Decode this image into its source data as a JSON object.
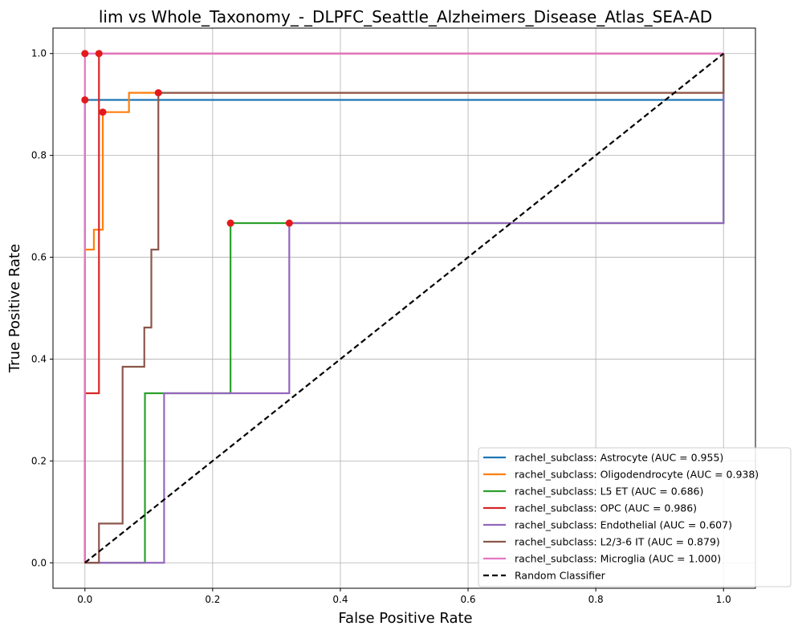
{
  "chart_data": {
    "type": "line",
    "title": "lim vs Whole_Taxonomy_-_DLPFC_Seattle_Alzheimers_Disease_Atlas_SEA-AD",
    "xlabel": "False Positive Rate",
    "ylabel": "True Positive Rate",
    "xlim": [
      -0.05,
      1.05
    ],
    "ylim": [
      -0.05,
      1.05
    ],
    "xticks": [
      "0.0",
      "0.2",
      "0.4",
      "0.6",
      "0.8",
      "1.0"
    ],
    "yticks": [
      "0.0",
      "0.2",
      "0.4",
      "0.6",
      "0.8",
      "1.0"
    ],
    "grid": true,
    "legend_position": "lower-right",
    "series": [
      {
        "name": "rachel_subclass: Astrocyte (AUC = 0.955)",
        "color": "#1f77b4",
        "x": [
          0,
          0,
          0,
          1,
          1
        ],
        "y": [
          0,
          0.909,
          0.909,
          0.909,
          1.0
        ],
        "marker": [
          0,
          0.909
        ]
      },
      {
        "name": "rachel_subclass: Oligodendrocyte (AUC = 0.938)",
        "color": "#ff7f0e",
        "x": [
          0,
          0,
          0,
          0.014,
          0.014,
          0.028,
          0.028,
          0.069,
          0.069,
          0.115,
          0.115,
          1,
          1
        ],
        "y": [
          0,
          0.615,
          0.615,
          0.615,
          0.654,
          0.654,
          0.885,
          0.885,
          0.923,
          0.923,
          0.923,
          0.923,
          1.0
        ],
        "marker": [
          0.028,
          0.885
        ]
      },
      {
        "name": "rachel_subclass: L5 ET (AUC = 0.686)",
        "color": "#2ca02c",
        "x": [
          0,
          0.094,
          0.094,
          0.228,
          0.228,
          0.32,
          1,
          1
        ],
        "y": [
          0,
          0,
          0.333,
          0.333,
          0.667,
          0.667,
          0.667,
          1.0
        ],
        "marker": [
          0.228,
          0.667
        ]
      },
      {
        "name": "rachel_subclass: OPC (AUC = 0.986)",
        "color": "#d62728",
        "x": [
          0,
          0,
          0.022,
          0.022,
          1
        ],
        "y": [
          0,
          0.333,
          0.333,
          1.0,
          1.0
        ],
        "marker": [
          0.022,
          1.0
        ]
      },
      {
        "name": "rachel_subclass: Endothelial (AUC = 0.607)",
        "color": "#9467bd",
        "x": [
          0,
          0.124,
          0.124,
          0.32,
          0.32,
          1,
          1
        ],
        "y": [
          0,
          0,
          0.333,
          0.333,
          0.667,
          0.667,
          1.0
        ],
        "marker": [
          0.32,
          0.667
        ]
      },
      {
        "name": "rachel_subclass: L2/3-6 IT (AUC = 0.879)",
        "color": "#8c564b",
        "x": [
          0,
          0.022,
          0.022,
          0.059,
          0.059,
          0.093,
          0.093,
          0.104,
          0.104,
          0.115,
          0.115,
          1,
          1
        ],
        "y": [
          0,
          0,
          0.077,
          0.077,
          0.385,
          0.385,
          0.462,
          0.462,
          0.615,
          0.615,
          0.923,
          0.923,
          1.0
        ],
        "marker": [
          0.115,
          0.923
        ]
      },
      {
        "name": "rachel_subclass: Microglia (AUC = 1.000)",
        "color": "#e377c2",
        "x": [
          0,
          0,
          1
        ],
        "y": [
          0,
          1.0,
          1.0
        ],
        "marker": [
          0,
          1.0
        ]
      },
      {
        "name": "Random Classifier",
        "color": "#000000",
        "dashed": true,
        "x": [
          0,
          1
        ],
        "y": [
          0,
          1
        ]
      }
    ]
  }
}
